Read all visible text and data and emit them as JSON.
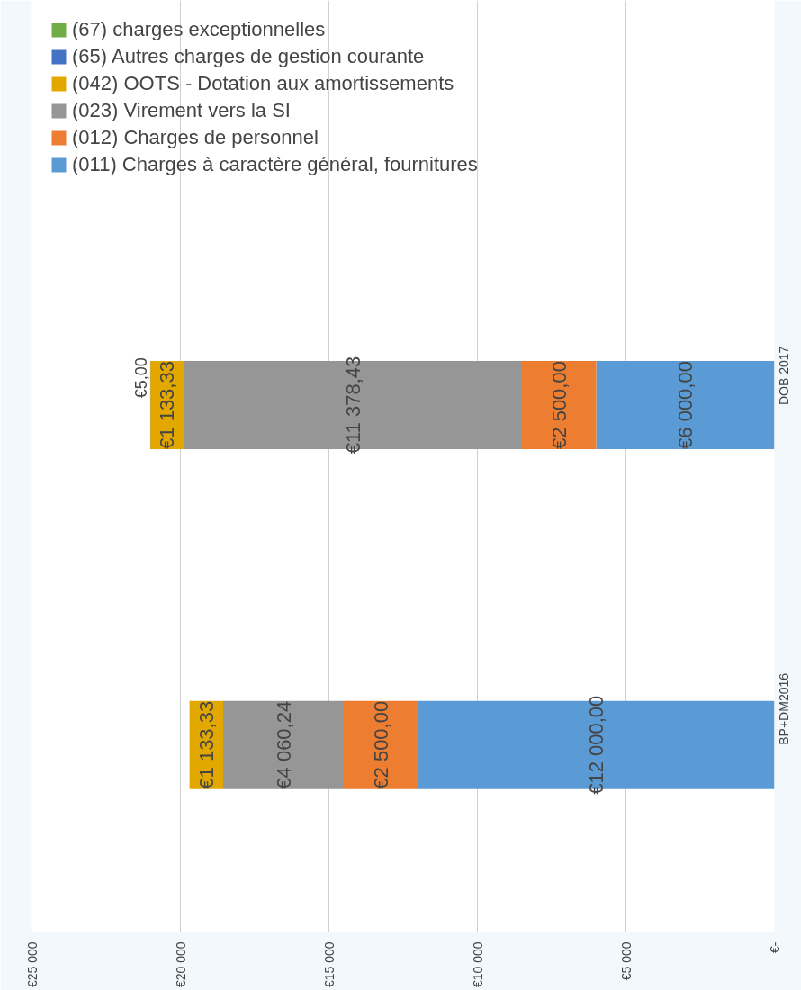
{
  "chart_data": {
    "type": "bar",
    "orientation": "horizontal",
    "stacked": true,
    "categories": [
      "DOB 2017",
      "BP+DM2016"
    ],
    "xlim": [
      25000,
      0
    ],
    "xticks": [
      {
        "value": 25000,
        "label": "€25 000"
      },
      {
        "value": 20000,
        "label": "€20 000"
      },
      {
        "value": 15000,
        "label": "€15 000"
      },
      {
        "value": 10000,
        "label": "€10 000"
      },
      {
        "value": 5000,
        "label": "€5 000"
      },
      {
        "value": 0,
        "label": "€-"
      }
    ],
    "grid": "x",
    "legend": "top",
    "series": [
      {
        "name": "(011) Charges à caractère général, fournitures",
        "color": "#5b9bd5",
        "values": [
          6000,
          12000
        ],
        "value_labels": [
          "€6 000,00",
          "€12 000,00"
        ]
      },
      {
        "name": "(012) Charges de personnel",
        "color": "#ed7d31",
        "values": [
          2500,
          2500
        ],
        "value_labels": [
          "€2 500,00",
          "€2 500,00"
        ]
      },
      {
        "name": "(023) Virement vers la SI",
        "color": "#969696",
        "values": [
          11378.43,
          4060.24
        ],
        "value_labels": [
          "€11 378,43",
          "€4 060,24"
        ]
      },
      {
        "name": "(042) OOTS - Dotation aux amortissements",
        "color": "#e2a800",
        "values": [
          1133.33,
          1133.33
        ],
        "value_labels": [
          "€1 133,33",
          "€1 133,33"
        ]
      },
      {
        "name": "(65) Autres charges de gestion courante",
        "color": "#4472c4",
        "values": [
          5,
          null
        ],
        "value_labels": [
          "€5,00",
          null
        ]
      },
      {
        "name": "(67) charges exceptionnelles",
        "color": "#70ad47",
        "values": [
          null,
          null
        ],
        "value_labels": [
          null,
          null
        ]
      }
    ]
  }
}
